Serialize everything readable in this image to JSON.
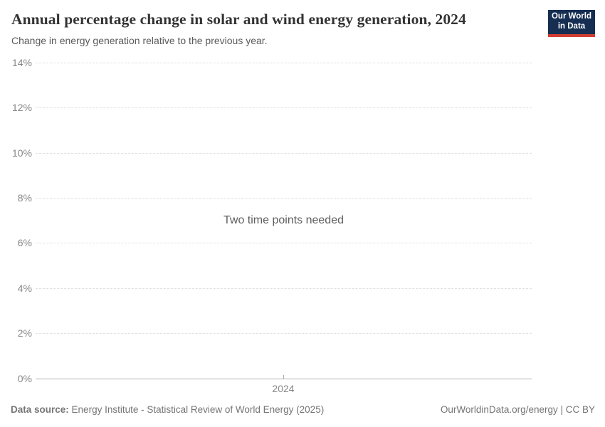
{
  "header": {
    "title": "Annual percentage change in solar and wind energy generation, 2024",
    "subtitle": "Change in energy generation relative to the previous year.",
    "logo": {
      "line1": "Our World",
      "line2": "in Data",
      "bg_color": "#152e52",
      "accent_color": "#d13d33"
    }
  },
  "chart": {
    "empty_message": "Two time points needed",
    "yticks": [
      "14%",
      "12%",
      "10%",
      "8%",
      "6%",
      "4%",
      "2%",
      "0%"
    ],
    "xtick": "2024",
    "gridline_color": "#e0e0e0",
    "axis_color": "#b0b0b0"
  },
  "footer": {
    "source_label": "Data source:",
    "source_text": "Energy Institute - Statistical Review of World Energy (2025)",
    "credit": "OurWorldinData.org/energy | CC BY"
  },
  "chart_data": {
    "type": "line",
    "title": "Annual percentage change in solar and wind energy generation, 2024",
    "subtitle": "Change in energy generation relative to the previous year.",
    "xlabel": "",
    "ylabel": "",
    "ylim": [
      0,
      14
    ],
    "y_tick_labels": [
      "0%",
      "2%",
      "4%",
      "6%",
      "8%",
      "10%",
      "12%",
      "14%"
    ],
    "x_tick_labels": [
      "2024"
    ],
    "grid": "horizontal-dashed",
    "legend": "none",
    "series": [],
    "status_message": "Two time points needed"
  }
}
